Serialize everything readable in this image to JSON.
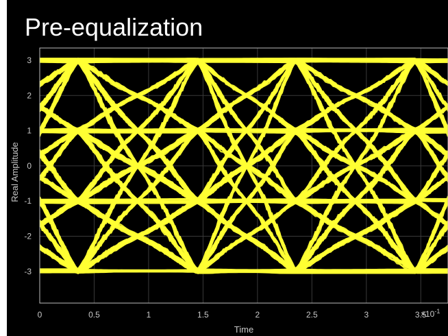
{
  "chart_data": {
    "type": "line",
    "title": "Pre-equalization",
    "xlabel": "Time",
    "ylabel": "Real Amplitude",
    "x_exponent_label": "×10",
    "x_exponent_power": "-1",
    "xlim": [
      0,
      3.75
    ],
    "ylim": [
      -3.9,
      3.35
    ],
    "xticks": [
      0,
      0.5,
      1,
      1.5,
      2,
      2.5,
      3,
      3.5
    ],
    "xtick_labels": [
      "0",
      "0.5",
      "1",
      "1.5",
      "2",
      "2.5",
      "3",
      "3.5"
    ],
    "yticks": [
      3,
      2,
      1,
      0,
      -1,
      -2,
      -3
    ],
    "ytick_labels": [
      "3",
      "2",
      "1",
      "0",
      "-1",
      "-2",
      "-3"
    ],
    "levels": [
      -3,
      -1,
      1,
      3
    ],
    "symbol_period": 2.0,
    "eye_centers": [
      0.35,
      1.45,
      2.35,
      3.45
    ],
    "grid": true,
    "series": [
      {
        "values_description": "",
        "color": "#ffff33"
      }
    ],
    "background": "#000000",
    "axis_text_color": "#c8c8c8"
  }
}
